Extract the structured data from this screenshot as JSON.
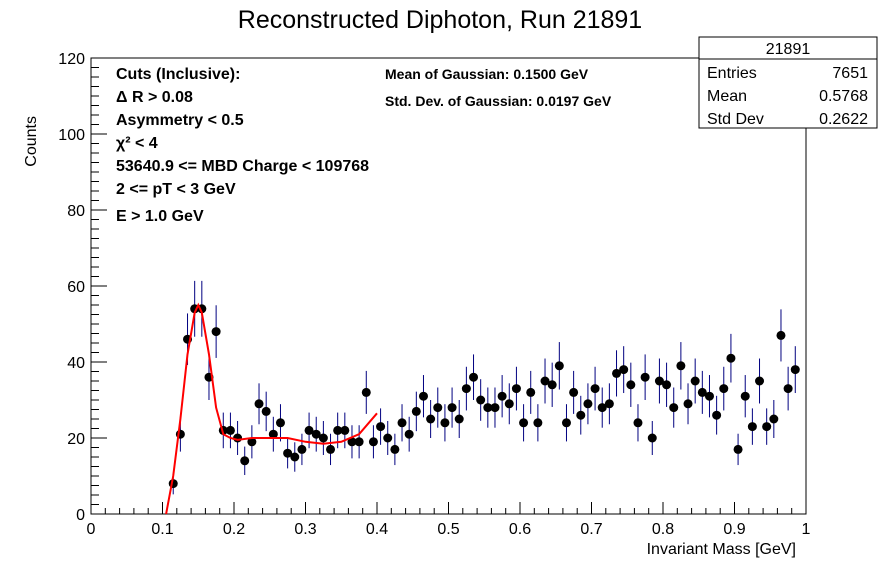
{
  "chart_data": {
    "type": "scatter",
    "title": "Reconstructed Diphoton, Run 21891",
    "xlabel": "Invariant Mass [GeV]",
    "ylabel": "Counts",
    "xlim": [
      0,
      1
    ],
    "ylim": [
      0,
      120
    ],
    "x_ticks": [
      "0",
      "0.1",
      "0.2",
      "0.3",
      "0.4",
      "0.5",
      "0.6",
      "0.7",
      "0.8",
      "0.9",
      "1"
    ],
    "y_ticks": [
      "0",
      "20",
      "40",
      "60",
      "80",
      "100",
      "120"
    ],
    "bin_width": 0.01,
    "x": [
      0.005,
      0.015,
      0.025,
      0.035,
      0.045,
      0.055,
      0.065,
      0.075,
      0.085,
      0.095,
      0.105,
      0.115,
      0.125,
      0.135,
      0.145,
      0.155,
      0.165,
      0.175,
      0.185,
      0.195,
      0.205,
      0.215,
      0.225,
      0.235,
      0.245,
      0.255,
      0.265,
      0.275,
      0.285,
      0.295,
      0.305,
      0.315,
      0.325,
      0.335,
      0.345,
      0.355,
      0.365,
      0.375,
      0.385,
      0.395,
      0.405,
      0.415,
      0.425,
      0.435,
      0.445,
      0.455,
      0.465,
      0.475,
      0.485,
      0.495,
      0.505,
      0.515,
      0.525,
      0.535,
      0.545,
      0.555,
      0.565,
      0.575,
      0.585,
      0.595,
      0.605,
      0.615,
      0.625,
      0.635,
      0.645,
      0.655,
      0.665,
      0.675,
      0.685,
      0.695,
      0.705,
      0.715,
      0.725,
      0.735,
      0.745,
      0.755,
      0.765,
      0.775,
      0.785,
      0.795,
      0.805,
      0.815,
      0.825,
      0.835,
      0.845,
      0.855,
      0.865,
      0.875,
      0.885,
      0.895,
      0.905,
      0.915,
      0.925,
      0.935,
      0.945,
      0.955,
      0.965,
      0.975,
      0.985,
      0.995
    ],
    "y": [
      0,
      0,
      0,
      0,
      0,
      0,
      0,
      0,
      0,
      0,
      0,
      8,
      21,
      46,
      54,
      54,
      36,
      48,
      22,
      22,
      20,
      14,
      19,
      29,
      27,
      21,
      24,
      16,
      15,
      17,
      22,
      21,
      20,
      17,
      22,
      22,
      19,
      19,
      32,
      19,
      23,
      20,
      17,
      24,
      21,
      27,
      31,
      25,
      28,
      24,
      28,
      25,
      33,
      36,
      30,
      28,
      28,
      31,
      29,
      33,
      24,
      32,
      24,
      35,
      34,
      39,
      24,
      32,
      26,
      29,
      33,
      28,
      29,
      37,
      38,
      34,
      24,
      36,
      20,
      35,
      34,
      28,
      39,
      29,
      35,
      32,
      31,
      26,
      33,
      41,
      17,
      31,
      23,
      35,
      23,
      25,
      47,
      33,
      38,
      0
    ],
    "errors_visible": true,
    "fit": {
      "color": "#ff0000",
      "range": [
        0.1,
        0.4
      ],
      "x": [
        0.105,
        0.115,
        0.125,
        0.135,
        0.145,
        0.15,
        0.155,
        0.165,
        0.175,
        0.185,
        0.195,
        0.205,
        0.225,
        0.25,
        0.275,
        0.3,
        0.325,
        0.35,
        0.375,
        0.4
      ],
      "y": [
        0,
        10,
        25,
        42,
        53,
        55,
        53,
        42,
        28,
        21,
        20,
        19.5,
        20,
        20,
        20,
        19,
        18.5,
        19,
        21,
        26.5
      ]
    },
    "cuts_text": [
      "Cuts (Inclusive):",
      "Δ R > 0.08",
      "Asymmetry < 0.5",
      "χ² < 4",
      "53640.9 <= MBD Charge < 109768",
      "2 <= pT < 3 GeV",
      "E > 1.0 GeV"
    ],
    "fit_text": [
      "Mean of Gaussian: 0.1500 GeV",
      "Std. Dev. of Gaussian: 0.0197 GeV"
    ],
    "stats": {
      "name": "21891",
      "rows": [
        {
          "label": "Entries",
          "value": "7651"
        },
        {
          "label": "Mean",
          "value": "0.5768"
        },
        {
          "label": "Std Dev",
          "value": "0.2622"
        }
      ]
    },
    "grid": false,
    "legend": "none"
  }
}
